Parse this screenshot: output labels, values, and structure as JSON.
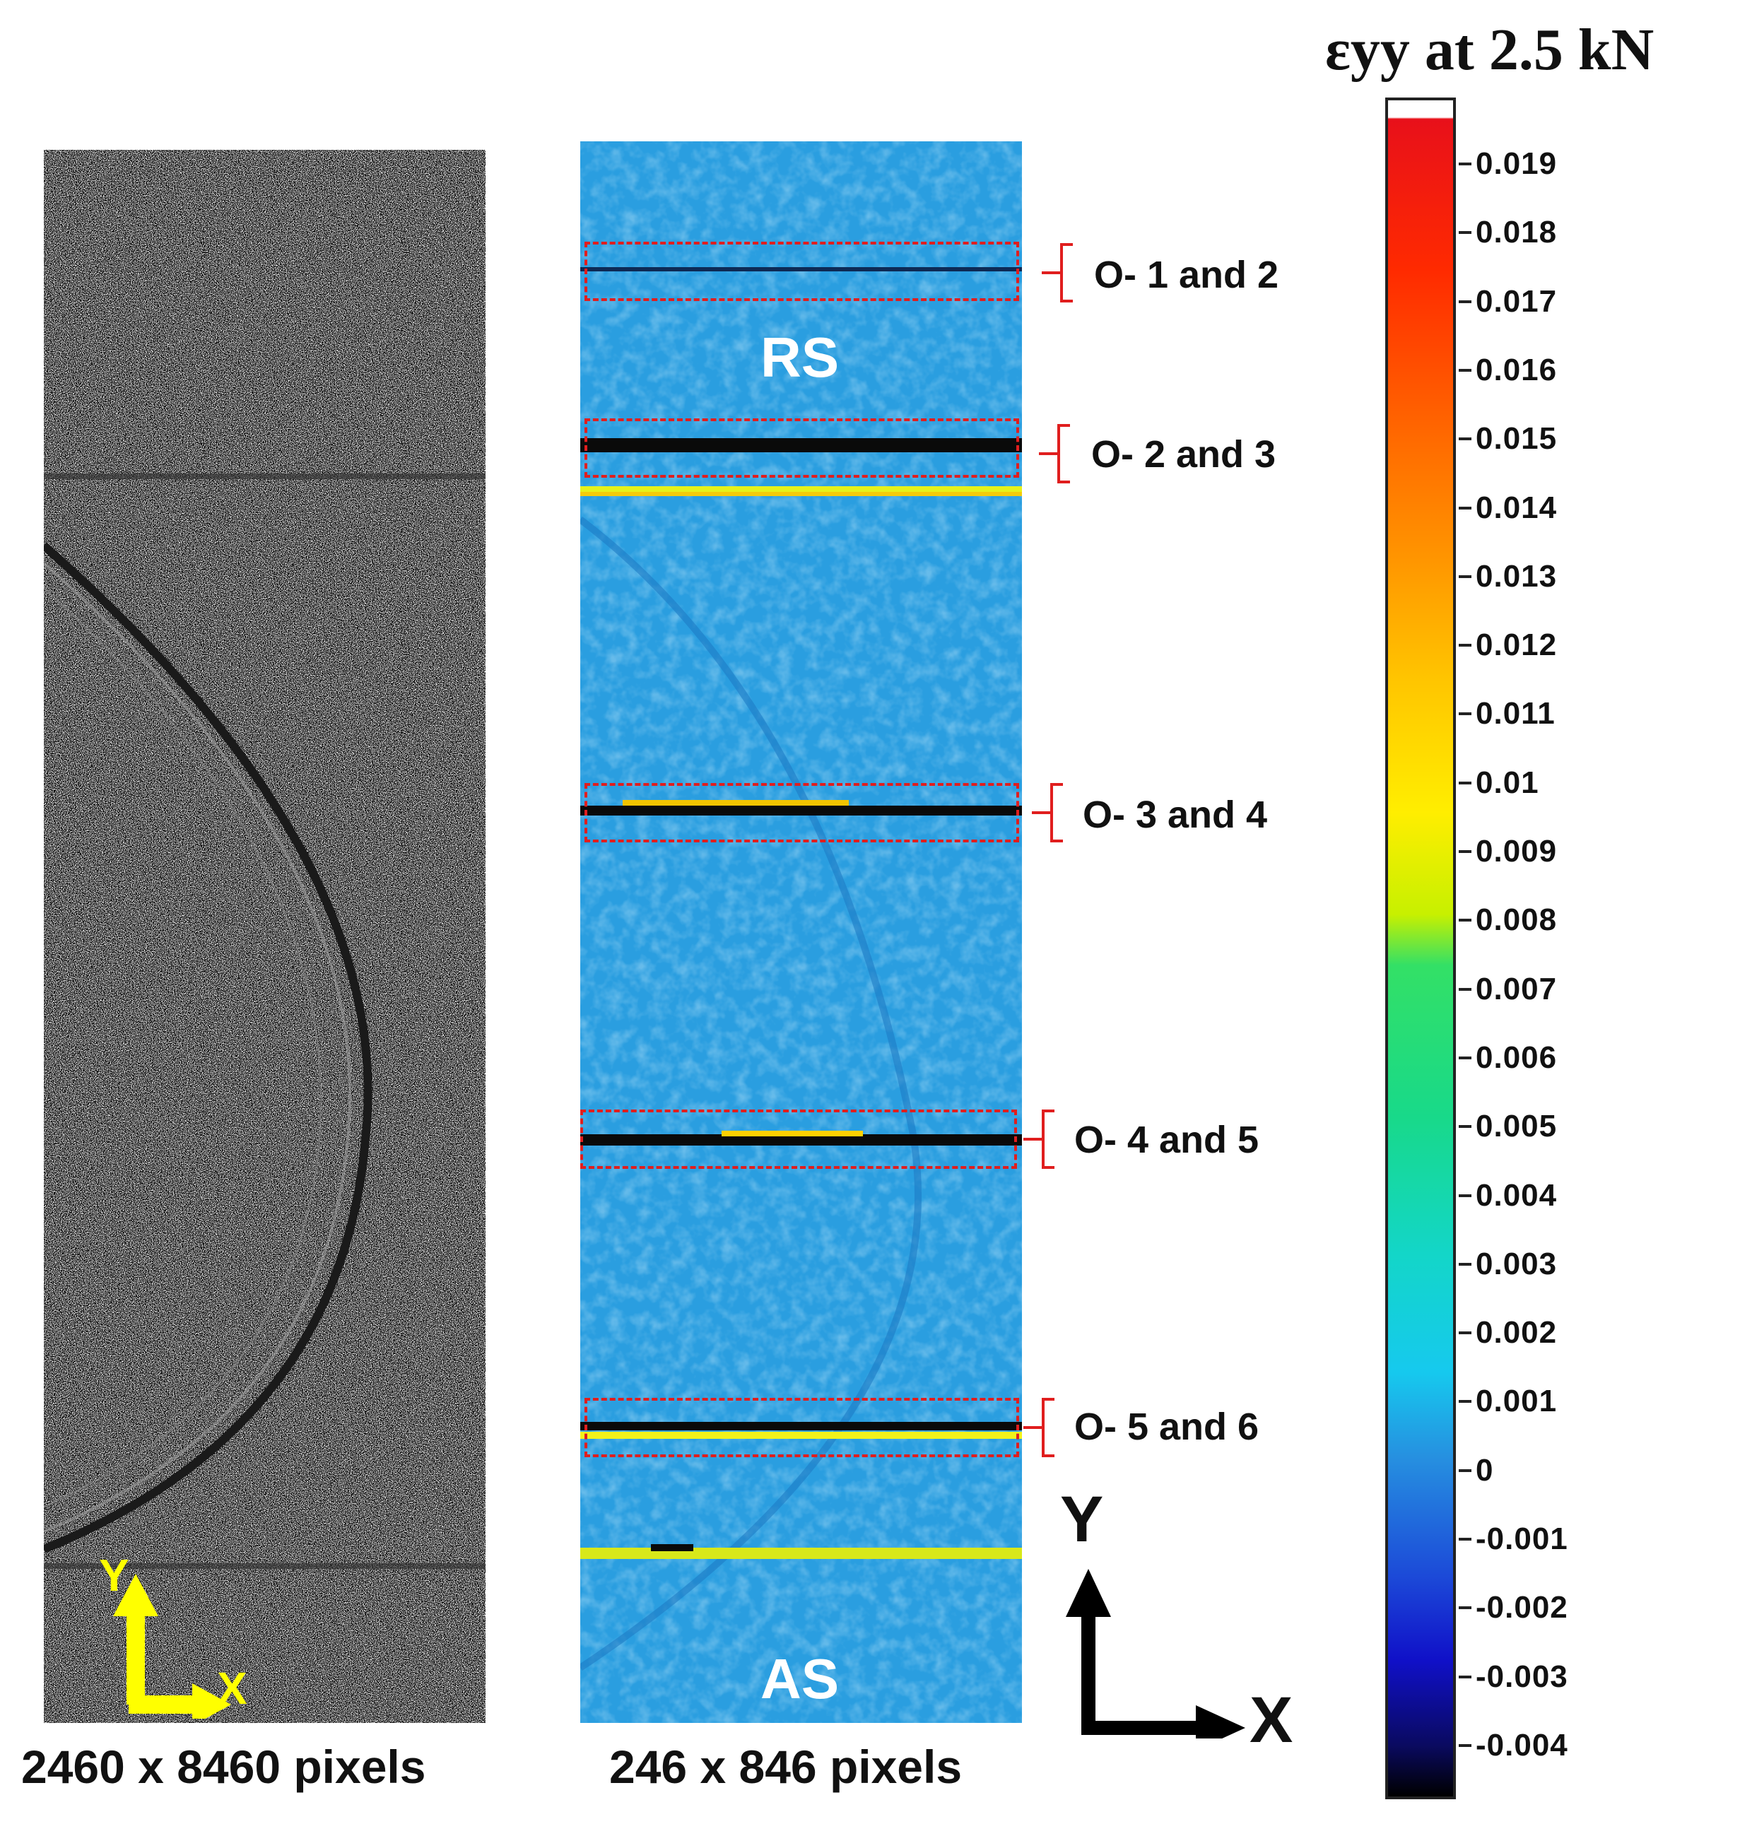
{
  "left_panel": {
    "caption": "2460 x 8460 pixels",
    "axis_y": "Y",
    "axis_x": "X"
  },
  "right_panel": {
    "caption": "246 x 846 pixels",
    "top_side": "RS",
    "bottom_side": "AS",
    "regions": [
      {
        "label": "O- 1 and 2"
      },
      {
        "label": "O- 2 and 3"
      },
      {
        "label": "O- 3 and 4"
      },
      {
        "label": "O- 4 and 5"
      },
      {
        "label": "O- 5 and 6"
      }
    ],
    "axis_y": "Y",
    "axis_x": "X"
  },
  "colorbar": {
    "title": "εyy at 2.5 kN",
    "ticks": [
      "0.019",
      "0.018",
      "0.017",
      "0.016",
      "0.015",
      "0.014",
      "0.013",
      "0.012",
      "0.011",
      "0.01",
      "0.009",
      "0.008",
      "0.007",
      "0.006",
      "0.005",
      "0.004",
      "0.003",
      "0.002",
      "0.001",
      "0",
      "-0.001",
      "-0.002",
      "-0.003",
      "-0.004"
    ],
    "colors": {
      "max": "#e8101a",
      "mid": "#ffee00",
      "zero": "#16c9ee",
      "min": "#000000"
    }
  },
  "colors": {
    "region_box": "#e01e1e",
    "strain_base": "#2a9ee0",
    "axis_arrow_left": "#ffff00"
  }
}
